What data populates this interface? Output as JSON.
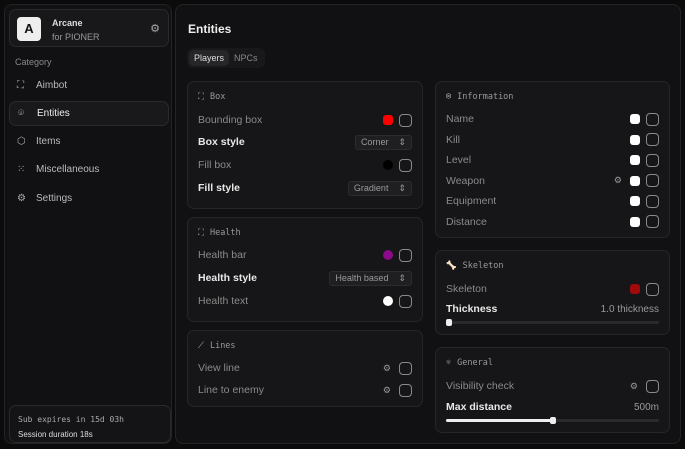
{
  "app": {
    "name": "Arcane",
    "subtitle": "for PIONER",
    "logo_letter": "A"
  },
  "sidebar": {
    "category_label": "Category",
    "items": [
      {
        "label": "Aimbot",
        "icon": "crosshair-icon",
        "active": false
      },
      {
        "label": "Entities",
        "icon": "scan-user-icon",
        "active": true
      },
      {
        "label": "Items",
        "icon": "box-icon",
        "active": false
      },
      {
        "label": "Miscellaneous",
        "icon": "grid-icon",
        "active": false
      },
      {
        "label": "Settings",
        "icon": "gear-icon",
        "active": false
      }
    ],
    "sub_expires": "Sub expires in 15d 03h",
    "session": "Session duration 18s"
  },
  "main": {
    "title": "Entities",
    "tabs": [
      {
        "label": "Players",
        "active": true
      },
      {
        "label": "NPCs",
        "active": false
      }
    ]
  },
  "box": {
    "title": "Box",
    "bounding_box": "Bounding box",
    "bounding_color": "#ff0000",
    "box_style": "Box style",
    "box_style_value": "Corner",
    "fill_box": "Fill box",
    "fill_color": "#000000",
    "fill_style": "Fill style",
    "fill_style_value": "Gradient"
  },
  "health": {
    "title": "Health",
    "bar": "Health bar",
    "bar_color": "#8a0a8a",
    "style": "Health style",
    "style_value": "Health based",
    "text": "Health text",
    "text_color": "#ffffff"
  },
  "lines": {
    "title": "Lines",
    "view_line": "View line",
    "line_to_enemy": "Line to enemy"
  },
  "information": {
    "title": "Information",
    "items": [
      "Name",
      "Kill",
      "Level",
      "Weapon",
      "Equipment",
      "Distance"
    ],
    "color": "#ffffff"
  },
  "skeleton": {
    "title": "Skeleton",
    "label": "Skeleton",
    "color": "#a00a0a",
    "thickness_label": "Thickness",
    "thickness_value": "1.0 thickness",
    "thickness_fraction": 0.0
  },
  "general": {
    "title": "General",
    "visibility": "Visibility check",
    "max_distance_label": "Max distance",
    "max_distance_value": "500m",
    "max_distance_fraction": 0.5
  }
}
